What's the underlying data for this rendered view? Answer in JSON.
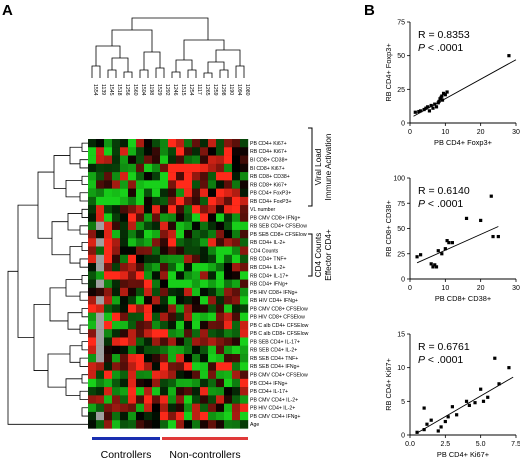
{
  "panel_labels": {
    "a": "A",
    "b": "B"
  },
  "heatmap": {
    "column_ids": [
      "1554",
      "1139",
      "1545",
      "1518",
      "1256",
      "1560",
      "1504",
      "1198",
      "1529",
      "1292",
      "1246",
      "1515",
      "1254",
      "1117",
      "1265",
      "1259",
      "1298",
      "1190",
      "1094",
      "1080"
    ],
    "row_labels": [
      "PB CD4+ Ki67+",
      "RB CD4+ Ki67+",
      "BI CD8+ CD38+",
      "BI CD8+ Ki67+",
      "RB CD8+ CD38+",
      "RB CD8+ Ki67+",
      "PB CD4+ FoxP3+",
      "RB CD4+ FoxP3+",
      "VL number",
      "PB CMV CD8+ IFNg+",
      "RB SEB CD4+ CFSElow",
      "PB SEB CD8+ CFSElow",
      "RB CD4+ IL-2+",
      "CD4 Counts",
      "RB CD4+ TNF+",
      "RB CD4+ IL-2+",
      "RB CD4+ IL-17+",
      "RB CD4+ IFNg+",
      "PB HIV CD8+ IFNg+",
      "RB HIV CD4+ IFNg+",
      "PB CMV CD8+ CFSElow",
      "PB HIV CD8+ CFSElow",
      "PB C alb CD4+ CFSElow",
      "PB C alb CD8+ CFSElow",
      "PB SEB CD4+ IL-17+",
      "RB SEB CD4+ IL-2+",
      "RB SEB CD4+ TNF+",
      "RB SEB CD4+ IFNg+",
      "PB CMV CD4+ CFSElow",
      "PB CD4+ IFNg+",
      "PB CD4+ IL-17+",
      "PB CMV CD4+ IL-2+",
      "PB HIV CD4+ IL-2+",
      "PB CMV CD4+ IFNg+",
      "Age"
    ],
    "brackets": [
      {
        "lines": [
          "Viral Load",
          "Immune Activation"
        ]
      },
      {
        "lines": [
          "CD4 Counts",
          "Effector CD4+"
        ]
      }
    ],
    "groups": [
      {
        "label": "Controllers",
        "color": "#1a2fb0"
      },
      {
        "label": "Non-controllers",
        "color": "#e03a3a"
      }
    ],
    "colors": {
      "high": "#ff2a1a",
      "low": "#18d01a",
      "mid": "#000000",
      "missing": "#a0a0a0"
    }
  },
  "chart_data": [
    {
      "type": "scatter",
      "title": "",
      "xlabel": "PB CD4+ Foxp3+",
      "ylabel": "RB CD4+ Foxp3+",
      "xlim": [
        0,
        30
      ],
      "ylim": [
        0,
        75
      ],
      "xticks": [
        0,
        10,
        20,
        30
      ],
      "yticks": [
        0,
        25,
        50,
        75
      ],
      "annotation": {
        "r": "R = 0.8353",
        "p_prefix": "P",
        "p_rest": " < .0001"
      },
      "points": [
        [
          1.5,
          8
        ],
        [
          2.5,
          8.5
        ],
        [
          3,
          9
        ],
        [
          4,
          10
        ],
        [
          4.5,
          11
        ],
        [
          5,
          12
        ],
        [
          5.5,
          9
        ],
        [
          6,
          13
        ],
        [
          6.5,
          11
        ],
        [
          7,
          14
        ],
        [
          7.5,
          12
        ],
        [
          8,
          15
        ],
        [
          8.2,
          16
        ],
        [
          8.5,
          18
        ],
        [
          9,
          20
        ],
        [
          9.2,
          17
        ],
        [
          9.5,
          22
        ],
        [
          10,
          21
        ],
        [
          10.5,
          23
        ],
        [
          8.8,
          19
        ],
        [
          28,
          50
        ]
      ],
      "fit": [
        [
          1,
          5
        ],
        [
          30,
          47
        ]
      ]
    },
    {
      "type": "scatter",
      "title": "",
      "xlabel": "PB CD8+ CD38+",
      "ylabel": "RB CD8+ CD38+",
      "xlim": [
        0,
        30
      ],
      "ylim": [
        0,
        100
      ],
      "xticks": [
        0,
        10,
        20,
        30
      ],
      "yticks": [
        0,
        25,
        50,
        75,
        100
      ],
      "annotation": {
        "r": "R = 0.6140",
        "p_prefix": "P",
        "p_rest": " < .0001"
      },
      "points": [
        [
          2,
          22
        ],
        [
          3,
          24
        ],
        [
          6,
          15
        ],
        [
          6.5,
          12
        ],
        [
          7,
          14
        ],
        [
          7.5,
          12
        ],
        [
          8,
          28
        ],
        [
          9,
          25
        ],
        [
          10,
          30
        ],
        [
          10.5,
          38
        ],
        [
          11,
          36
        ],
        [
          12,
          36
        ],
        [
          16,
          60
        ],
        [
          20,
          58
        ],
        [
          23,
          82
        ],
        [
          23.5,
          42
        ],
        [
          25,
          42
        ]
      ],
      "fit": [
        [
          2,
          16
        ],
        [
          25,
          52
        ]
      ]
    },
    {
      "type": "scatter",
      "title": "",
      "xlabel": "PB CD4+ Ki67+",
      "ylabel": "RB CD4+ Ki67+",
      "xlim": [
        0,
        7.5
      ],
      "ylim": [
        0,
        15
      ],
      "xticks": [
        0.0,
        2.5,
        5.0,
        7.5
      ],
      "yticks": [
        0,
        5,
        10,
        15
      ],
      "annotation": {
        "r": "R = 0.6761",
        "p_prefix": "P",
        "p_rest": " < .0001"
      },
      "points": [
        [
          0.5,
          0.4
        ],
        [
          1,
          0.8
        ],
        [
          1.2,
          1.6
        ],
        [
          1.5,
          2.2
        ],
        [
          2,
          0.6
        ],
        [
          2.2,
          1.2
        ],
        [
          2.5,
          2
        ],
        [
          2.7,
          2.7
        ],
        [
          3,
          4.2
        ],
        [
          3.3,
          3
        ],
        [
          4,
          5
        ],
        [
          4.2,
          4.4
        ],
        [
          4.6,
          4.8
        ],
        [
          5,
          6.8
        ],
        [
          5.2,
          5
        ],
        [
          5.5,
          5.6
        ],
        [
          6,
          11.4
        ],
        [
          6.3,
          7.6
        ],
        [
          7,
          10
        ],
        [
          1,
          4
        ]
      ],
      "fit": [
        [
          0.5,
          0.3
        ],
        [
          7.3,
          8.6
        ]
      ]
    }
  ]
}
